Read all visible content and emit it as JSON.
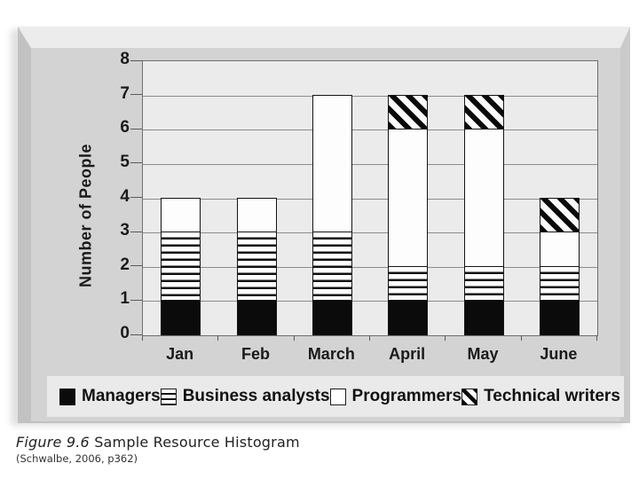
{
  "figure": {
    "caption_prefix": "Figure 9.6",
    "caption_title": " Sample Resource Histogram",
    "caption_source": "(Schwalbe, 2006, p362)"
  },
  "chart_data": {
    "type": "bar",
    "stacked": true,
    "title": "",
    "xlabel": "",
    "ylabel": "Number of People",
    "ylim": [
      0,
      8
    ],
    "yticks": [
      0,
      1,
      2,
      3,
      4,
      5,
      6,
      7,
      8
    ],
    "grid": true,
    "legend_position": "bottom",
    "categories": [
      "Jan",
      "Feb",
      "March",
      "April",
      "May",
      "June"
    ],
    "series": [
      {
        "name": "Managers",
        "pattern": "solid-black",
        "values": [
          1,
          1,
          1,
          1,
          1,
          1
        ]
      },
      {
        "name": "Business analysts",
        "pattern": "horizontal-stripes",
        "values": [
          2,
          2,
          2,
          1,
          1,
          1
        ]
      },
      {
        "name": "Programmers",
        "pattern": "solid-white",
        "values": [
          1,
          1,
          4,
          4,
          4,
          1
        ]
      },
      {
        "name": "Technical writers",
        "pattern": "diagonal-hatch",
        "values": [
          0,
          0,
          0,
          1,
          1,
          1
        ]
      }
    ],
    "totals": [
      4,
      4,
      7,
      7,
      7,
      4
    ]
  },
  "colors": {
    "panel": "#d3d3d3",
    "panel_bevel_top": "#ececec",
    "panel_bevel_left": "#c2c2c2",
    "plot_background": "#ebebeb",
    "legend_background": "#eaeaea",
    "gridline": "#8c8c8c",
    "bar_black": "#0b0b0b",
    "bar_white": "#fdfdfd",
    "text": "#1a1a1a"
  }
}
